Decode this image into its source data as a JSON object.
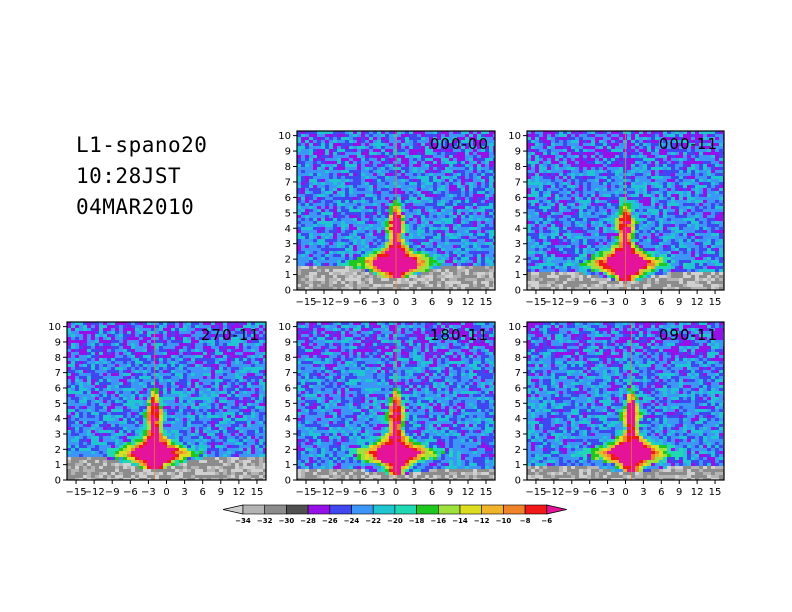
{
  "header": {
    "station": "L1-spano20",
    "time": "10:28JST",
    "date": "04MAR2010"
  },
  "chart_data": [
    {
      "type": "heatmap",
      "title": "000-00",
      "x_ticks": [
        "-15",
        "-12",
        "-9",
        "-6",
        "-3",
        "0",
        "3",
        "6",
        "9",
        "12",
        "15"
      ],
      "y_ticks": [
        "0",
        "1",
        "2",
        "3",
        "4",
        "5",
        "6",
        "7",
        "8",
        "9",
        "10"
      ],
      "xlim": [
        -16.5,
        16.5
      ],
      "ylim": [
        0,
        10.3
      ],
      "low_band_top": 1.6,
      "plume": {
        "center_x": 0,
        "peak_height": 4.6
      }
    },
    {
      "type": "heatmap",
      "title": "000-11",
      "x_ticks": [
        "-15",
        "-12",
        "-9",
        "-6",
        "-3",
        "0",
        "3",
        "6",
        "9",
        "12",
        "15"
      ],
      "y_ticks": [
        "0",
        "1",
        "2",
        "3",
        "4",
        "5",
        "6",
        "7",
        "8",
        "9",
        "10"
      ],
      "xlim": [
        -16.5,
        16.5
      ],
      "ylim": [
        0,
        10.3
      ],
      "low_band_top": 1.2,
      "plume": {
        "center_x": 0,
        "peak_height": 4.6
      }
    },
    {
      "type": "heatmap",
      "title": "270-11",
      "x_ticks": [
        "-15",
        "-12",
        "-9",
        "-6",
        "-3",
        "0",
        "3",
        "6",
        "9",
        "12",
        "15"
      ],
      "y_ticks": [
        "0",
        "1",
        "2",
        "3",
        "4",
        "5",
        "6",
        "7",
        "8",
        "9",
        "10"
      ],
      "xlim": [
        -16.5,
        16.5
      ],
      "ylim": [
        0,
        10.3
      ],
      "low_band_top": 1.5,
      "plume": {
        "center_x": -2,
        "peak_height": 4.8
      }
    },
    {
      "type": "heatmap",
      "title": "180-11",
      "x_ticks": [
        "-15",
        "-12",
        "-9",
        "-6",
        "-3",
        "0",
        "3",
        "6",
        "9",
        "12",
        "15"
      ],
      "y_ticks": [
        "0",
        "1",
        "2",
        "3",
        "4",
        "5",
        "6",
        "7",
        "8",
        "9",
        "10"
      ],
      "xlim": [
        -16.5,
        16.5
      ],
      "ylim": [
        0,
        10.3
      ],
      "low_band_top": 0.8,
      "plume": {
        "center_x": 0,
        "peak_height": 4.8
      }
    },
    {
      "type": "heatmap",
      "title": "090-11",
      "x_ticks": [
        "-15",
        "-12",
        "-9",
        "-6",
        "-3",
        "0",
        "3",
        "6",
        "9",
        "12",
        "15"
      ],
      "y_ticks": [
        "0",
        "1",
        "2",
        "3",
        "4",
        "5",
        "6",
        "7",
        "8",
        "9",
        "10"
      ],
      "xlim": [
        -16.5,
        16.5
      ],
      "ylim": [
        0,
        10.3
      ],
      "low_band_top": 1.0,
      "plume": {
        "center_x": 1,
        "peak_height": 4.8
      }
    }
  ],
  "colorbar": {
    "labels": [
      "-34",
      "-32",
      "-30",
      "-28",
      "-26",
      "-24",
      "-22",
      "-20",
      "-18",
      "-16",
      "-14",
      "-12",
      "-10",
      "-8",
      "-6"
    ],
    "under_color": "#d0d0d0",
    "over_color": "#e4139a",
    "colors": [
      "#b4b4b4",
      "#8c8c8c",
      "#505050",
      "#9810e8",
      "#4046f0",
      "#3c96f8",
      "#1fc6d2",
      "#20d8b4",
      "#1ec81e",
      "#9ee03c",
      "#dcdc20",
      "#f0b42a",
      "#f08228",
      "#f01818"
    ]
  }
}
